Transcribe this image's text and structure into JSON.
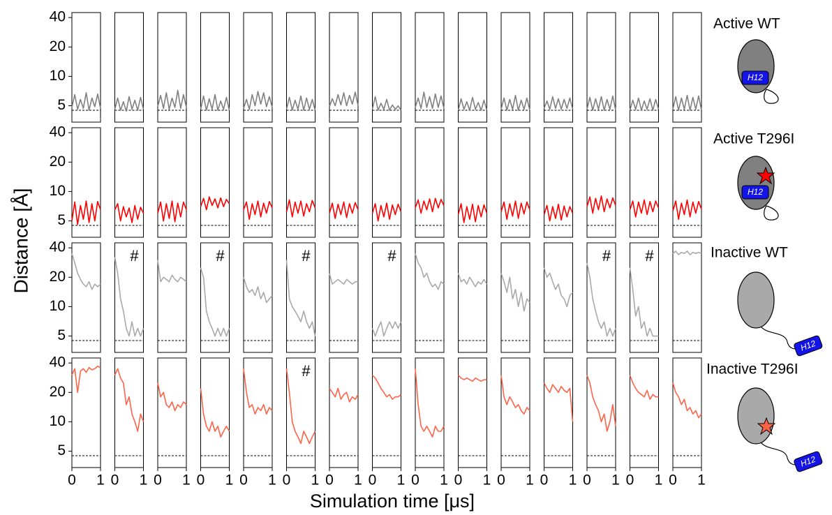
{
  "chart_data": {
    "type": "line",
    "ylabel": "Distance [Å]",
    "xlabel": "Simulation time [μs]",
    "yscale": "log",
    "ylim": [
      3.4,
      45
    ],
    "yticks": [
      5,
      10,
      20,
      40
    ],
    "xlim": [
      0,
      1
    ],
    "xticks": [
      0,
      1
    ],
    "reference": 4.5,
    "helix_label": "H12",
    "x": [
      0,
      0.1,
      0.2,
      0.3,
      0.4,
      0.5,
      0.6,
      0.7,
      0.8,
      0.9,
      1
    ],
    "rows": [
      {
        "label": "Active WT",
        "color": "#808080",
        "panels": [
          {
            "values": [
              4.8,
              6.5,
              4.6,
              5.8,
              4.7,
              6.8,
              4.5,
              6.0,
              4.9,
              6.6,
              4.7
            ]
          },
          {
            "values": [
              4.6,
              6.0,
              4.5,
              5.5,
              4.4,
              6.2,
              4.6,
              5.7,
              4.5,
              6.1,
              4.6
            ]
          },
          {
            "values": [
              4.9,
              6.4,
              4.7,
              6.8,
              4.6,
              6.0,
              4.8,
              7.2,
              4.7,
              6.5,
              4.8
            ]
          },
          {
            "values": [
              4.6,
              6.3,
              4.5,
              5.9,
              4.6,
              6.5,
              4.5,
              5.6,
              4.6,
              6.1,
              4.5
            ]
          },
          {
            "values": [
              4.7,
              5.8,
              4.6,
              6.5,
              5.0,
              7.0,
              5.2,
              6.8,
              4.9,
              6.2,
              4.8
            ]
          },
          {
            "values": [
              4.6,
              6.1,
              4.5,
              5.7,
              4.6,
              6.3,
              4.5,
              6.0,
              4.6,
              5.8,
              4.5
            ]
          },
          {
            "values": [
              4.9,
              5.9,
              5.0,
              6.5,
              5.1,
              6.8,
              5.0,
              6.4,
              5.2,
              6.9,
              5.0
            ]
          },
          {
            "values": [
              4.6,
              6.2,
              4.5,
              5.3,
              4.6,
              5.8,
              4.5,
              5.1,
              4.6,
              5.0,
              4.5
            ]
          },
          {
            "values": [
              4.8,
              6.0,
              4.7,
              6.9,
              4.8,
              6.2,
              4.7,
              6.6,
              4.8,
              6.3,
              4.7
            ]
          },
          {
            "values": [
              4.5,
              5.9,
              4.6,
              5.5,
              4.5,
              6.1,
              4.6,
              5.4,
              4.5,
              5.7,
              4.5
            ]
          },
          {
            "values": [
              4.6,
              6.0,
              4.5,
              5.8,
              4.6,
              6.4,
              4.5,
              5.7,
              4.6,
              6.0,
              4.5
            ]
          },
          {
            "values": [
              4.7,
              5.6,
              4.6,
              6.2,
              4.7,
              5.9,
              4.6,
              5.8,
              4.7,
              6.0,
              4.6
            ]
          },
          {
            "values": [
              4.6,
              6.1,
              4.5,
              5.9,
              4.6,
              6.2,
              4.5,
              5.8,
              4.6,
              6.3,
              4.5
            ]
          },
          {
            "values": [
              4.5,
              5.7,
              4.6,
              6.0,
              4.5,
              5.6,
              4.6,
              5.9,
              4.5,
              5.8,
              4.6
            ]
          },
          {
            "values": [
              4.6,
              6.2,
              4.5,
              6.0,
              4.6,
              6.4,
              4.5,
              6.1,
              4.6,
              6.3,
              4.5
            ]
          }
        ]
      },
      {
        "label": "Active T296I",
        "color": "#ff0000",
        "panels": [
          {
            "values": [
              5.0,
              7.8,
              4.6,
              7.2,
              5.2,
              8.0,
              4.8,
              7.5,
              5.0,
              7.9,
              6.5
            ]
          },
          {
            "values": [
              6.5,
              7.5,
              5.0,
              7.0,
              5.5,
              6.8,
              4.8,
              7.2,
              5.2,
              6.9,
              6.0
            ]
          },
          {
            "values": [
              6.0,
              7.8,
              5.0,
              7.5,
              5.3,
              8.0,
              4.9,
              7.6,
              5.5,
              7.8,
              6.5
            ]
          },
          {
            "values": [
              7.0,
              8.5,
              6.5,
              8.8,
              7.2,
              8.4,
              6.8,
              8.6,
              7.0,
              8.3,
              7.5
            ]
          },
          {
            "values": [
              6.5,
              7.8,
              5.2,
              7.5,
              5.8,
              8.0,
              5.5,
              7.6,
              6.0,
              7.9,
              6.8
            ]
          },
          {
            "values": [
              6.2,
              8.2,
              5.5,
              7.8,
              6.0,
              8.0,
              5.6,
              7.5,
              6.2,
              8.1,
              6.8
            ]
          },
          {
            "values": [
              6.0,
              7.6,
              5.3,
              7.4,
              5.8,
              7.8,
              5.4,
              7.5,
              6.0,
              7.7,
              6.5
            ]
          },
          {
            "values": [
              6.0,
              7.5,
              5.0,
              7.2,
              5.5,
              7.6,
              5.2,
              7.3,
              5.8,
              7.4,
              6.2
            ]
          },
          {
            "values": [
              6.8,
              8.2,
              6.0,
              8.0,
              6.5,
              8.4,
              6.2,
              8.5,
              6.8,
              8.3,
              7.2
            ]
          },
          {
            "values": [
              5.8,
              7.5,
              4.8,
              7.0,
              5.2,
              7.4,
              4.9,
              7.2,
              5.5,
              7.3,
              6.0
            ]
          },
          {
            "values": [
              6.2,
              7.8,
              5.2,
              7.5,
              5.6,
              8.0,
              5.3,
              7.6,
              5.9,
              7.8,
              6.5
            ]
          },
          {
            "values": [
              5.8,
              7.2,
              5.0,
              7.0,
              5.3,
              7.4,
              5.1,
              7.1,
              5.5,
              7.0,
              6.0
            ]
          },
          {
            "values": [
              7.0,
              8.8,
              6.0,
              8.5,
              6.5,
              9.0,
              6.2,
              8.4,
              6.8,
              8.6,
              7.2
            ]
          },
          {
            "values": [
              6.5,
              8.0,
              5.5,
              7.8,
              6.0,
              8.2,
              5.8,
              7.9,
              6.2,
              8.0,
              6.8
            ]
          },
          {
            "values": [
              6.3,
              8.0,
              5.2,
              7.6,
              5.8,
              8.2,
              5.5,
              7.8,
              6.0,
              7.9,
              6.6
            ]
          }
        ]
      },
      {
        "label": "Inactive WT",
        "color": "#a9a9a9",
        "panels": [
          {
            "values": [
              35,
              28,
              22,
              19,
              17,
              16,
              18,
              15,
              17,
              16,
              17
            ]
          },
          {
            "values": [
              32,
              22,
              12,
              9,
              6,
              5,
              7,
              5,
              6,
              5,
              6
            ],
            "annotation": "#"
          },
          {
            "values": [
              30,
              18,
              20,
              19,
              18,
              21,
              19,
              18,
              20,
              19,
              18
            ]
          },
          {
            "values": [
              25,
              20,
              9,
              7,
              6,
              5,
              6,
              5,
              6,
              5,
              6
            ],
            "annotation": "#"
          },
          {
            "values": [
              20,
              16,
              14,
              15,
              13,
              16,
              12,
              14,
              11,
              12,
              13
            ]
          },
          {
            "values": [
              30,
              12,
              10,
              9,
              8,
              7,
              9,
              7,
              6,
              7,
              5
            ],
            "annotation": "#"
          },
          {
            "values": [
              22,
              17,
              18,
              19,
              18,
              17,
              19,
              18,
              17,
              18,
              18
            ]
          },
          {
            "values": [
              6,
              5,
              6,
              7,
              5,
              6,
              7,
              6,
              7,
              6,
              7
            ],
            "annotation": "#"
          },
          {
            "values": [
              35,
              28,
              25,
              20,
              22,
              18,
              16,
              17,
              15,
              18,
              17
            ]
          },
          {
            "values": [
              22,
              18,
              19,
              17,
              20,
              18,
              16,
              18,
              17,
              19,
              17
            ]
          },
          {
            "values": [
              22,
              18,
              14,
              20,
              12,
              15,
              10,
              14,
              9,
              12,
              11
            ]
          },
          {
            "values": [
              25,
              20,
              22,
              18,
              15,
              17,
              13,
              12,
              10,
              13,
              14
            ]
          },
          {
            "values": [
              28,
              20,
              12,
              9,
              7,
              6,
              7,
              5,
              6,
              5,
              6
            ],
            "annotation": "#"
          },
          {
            "values": [
              25,
              15,
              8,
              10,
              6,
              7,
              5,
              6,
              5,
              5,
              5
            ],
            "annotation": "#"
          },
          {
            "values": [
              35,
              37,
              34,
              36,
              35,
              37,
              34,
              36,
              35,
              36,
              35
            ]
          }
        ]
      },
      {
        "label": "Inactive T296I",
        "color": "#ff6347",
        "panels": [
          {
            "values": [
              30,
              35,
              20,
              33,
              35,
              32,
              36,
              34,
              35,
              37,
              36
            ]
          },
          {
            "values": [
              30,
              35,
              28,
              25,
              15,
              18,
              12,
              10,
              8,
              12,
              10
            ]
          },
          {
            "values": [
              25,
              18,
              20,
              15,
              14,
              16,
              13,
              15,
              14,
              16,
              15
            ]
          },
          {
            "values": [
              22,
              12,
              9,
              8,
              10,
              8,
              9,
              7,
              8,
              9,
              8
            ]
          },
          {
            "values": [
              35,
              20,
              14,
              15,
              12,
              14,
              13,
              15,
              12,
              14,
              13
            ]
          },
          {
            "values": [
              35,
              20,
              10,
              8,
              7,
              6,
              8,
              7,
              6,
              7,
              8
            ],
            "annotation": "#"
          },
          {
            "values": [
              22,
              20,
              18,
              22,
              17,
              19,
              20,
              16,
              18,
              17,
              19
            ]
          },
          {
            "values": [
              30,
              28,
              25,
              22,
              20,
              18,
              19,
              17,
              18,
              18,
              19
            ]
          },
          {
            "values": [
              35,
              15,
              9,
              8,
              9,
              8,
              7,
              9,
              8,
              8,
              9
            ]
          },
          {
            "values": [
              30,
              28,
              27,
              28,
              27,
              26,
              28,
              27,
              26,
              27,
              27
            ]
          },
          {
            "values": [
              30,
              18,
              15,
              18,
              16,
              14,
              15,
              13,
              12,
              14,
              13
            ]
          },
          {
            "values": [
              25,
              22,
              20,
              24,
              22,
              20,
              23,
              21,
              20,
              22,
              10
            ]
          },
          {
            "values": [
              30,
              25,
              18,
              15,
              13,
              10,
              12,
              8,
              10,
              15,
              9
            ]
          },
          {
            "values": [
              30,
              25,
              22,
              20,
              19,
              18,
              21,
              17,
              19,
              18,
              18
            ]
          },
          {
            "values": [
              25,
              20,
              18,
              15,
              17,
              13,
              14,
              12,
              13,
              11,
              12
            ]
          }
        ]
      }
    ]
  }
}
